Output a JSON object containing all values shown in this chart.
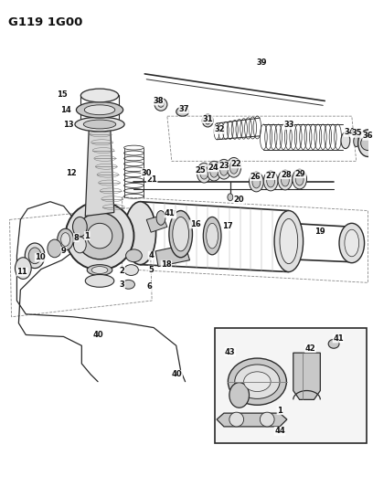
{
  "title": "G119 1G00",
  "bg_color": "#ffffff",
  "fig_width": 4.08,
  "fig_height": 5.33,
  "dpi": 100,
  "line_color": "#2a2a2a",
  "gray_fill": "#c8c8c8",
  "light_gray": "#e0e0e0",
  "dark_gray": "#555555"
}
